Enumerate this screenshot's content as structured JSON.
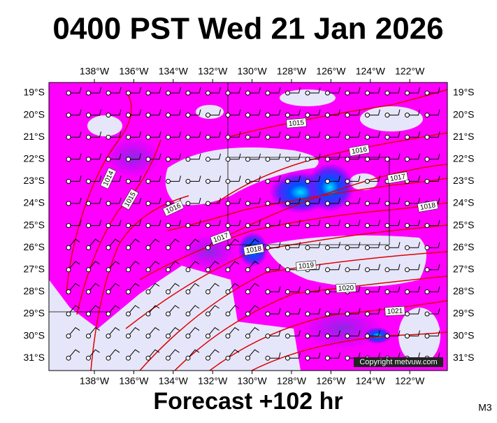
{
  "header": {
    "title": "0400 PST Wed 21 Jan 2026"
  },
  "longitudes": [
    "138°W",
    "136°W",
    "134°W",
    "132°W",
    "130°W",
    "128°W",
    "126°W",
    "124°W",
    "122°W"
  ],
  "latitudes": [
    "19°S",
    "20°S",
    "21°S",
    "22°S",
    "23°S",
    "24°S",
    "25°S",
    "26°S",
    "27°S",
    "28°S",
    "29°S",
    "30°S",
    "31°S"
  ],
  "isobars": [
    {
      "label": "1015"
    },
    {
      "label": "1016"
    },
    {
      "label": "1017"
    },
    {
      "label": "1018"
    },
    {
      "label": "1014"
    },
    {
      "label": "1015"
    },
    {
      "label": "1016"
    },
    {
      "label": "1017"
    },
    {
      "label": "1018"
    },
    {
      "label": "1019"
    },
    {
      "label": "1020"
    },
    {
      "label": "1021"
    }
  ],
  "copyright": "Copyright metvuw.com",
  "footer": {
    "forecast": "Forecast +102 hr",
    "model": "M3"
  }
}
